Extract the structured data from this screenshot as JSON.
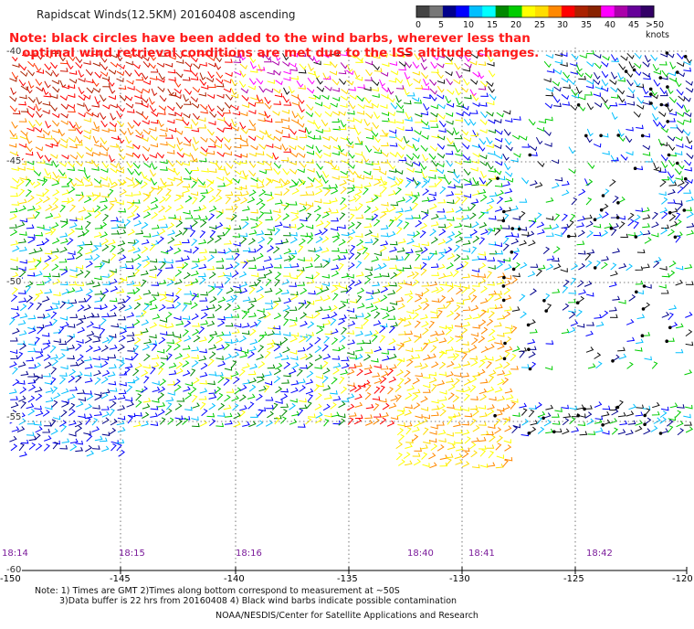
{
  "title": "Rapidscat Winds(12.5KM) 20160408 ascending",
  "note": {
    "line1": "Note: black circles have been added to the wind barbs, wherever less than",
    "line2": "   optimal wind retrieval conditions are met due to the ISS altitude changes."
  },
  "color_scale": {
    "colors": [
      "#444444",
      "#777777",
      "#00008b",
      "#0000ff",
      "#00bfff",
      "#00ffff",
      "#008800",
      "#00cc00",
      "#ffff00",
      "#ffdd00",
      "#ff8800",
      "#ff0000",
      "#aa2200",
      "#882200",
      "#ff00ff",
      "#aa00aa",
      "#660099",
      "#330066"
    ],
    "labels": [
      "0",
      "5",
      "10",
      "15",
      "20",
      "25",
      "30",
      "35",
      "40",
      "45",
      ">50 knots"
    ]
  },
  "axes": {
    "lat_labels": [
      "-40",
      "-45",
      "-50",
      "-55",
      "-60"
    ],
    "lon_labels": [
      "-150",
      "-145",
      "-140",
      "-135",
      "-130",
      "-125",
      "-120"
    ]
  },
  "times": [
    "18:14",
    "18:15",
    "18:16",
    "18:40",
    "18:41",
    "18:42"
  ],
  "footer": {
    "line1": "Note: 1) Times are GMT 2)Times along bottom correspond to measurement at ~50S",
    "line2": "3)Data buffer is 22 hrs from 20160408 4) Black wind barbs indicate possible contamination",
    "line3": "NOAA/NESDIS/Center for Satellite Applications and Research"
  }
}
